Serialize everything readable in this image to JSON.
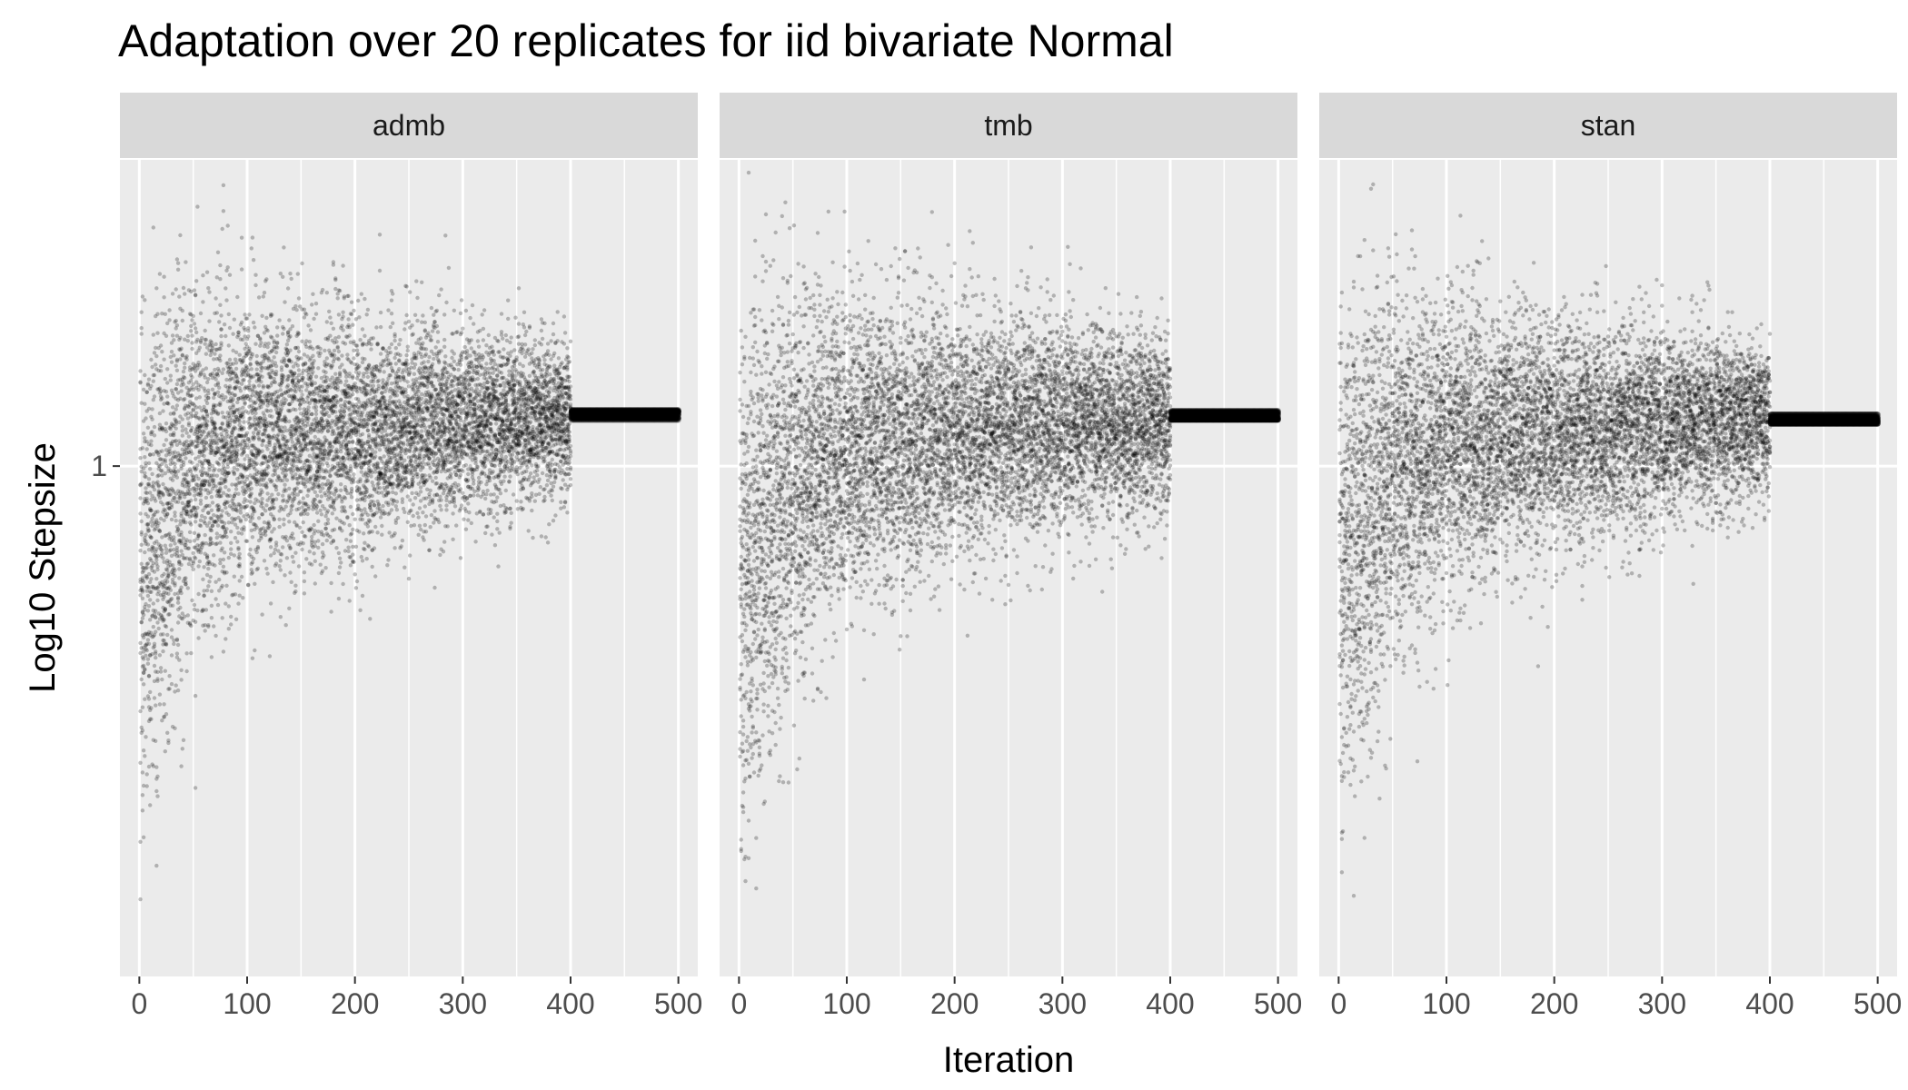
{
  "chart_data": {
    "type": "scatter",
    "title": "Adaptation over 20 replicates for iid bivariate Normal",
    "xlabel": "Iteration",
    "ylabel": "Log10 Stepsize",
    "xlim": [
      -18,
      518
    ],
    "x_ticks": [
      0,
      100,
      200,
      300,
      400,
      500
    ],
    "y_scale": "log10",
    "ylim_log10": [
      -0.6,
      0.36
    ],
    "y_ticks": [
      1
    ],
    "y_tick_labels": [
      "1"
    ],
    "grid": true,
    "legend": "none",
    "replicates": 20,
    "adaptation_iterations": 400,
    "total_iterations": 500,
    "point_color": "#000000",
    "point_opacity": 0.25,
    "panels": [
      {
        "name": "admb",
        "final_stepsize_log10": 0.06,
        "pattern": [
          {
            "iter": 0,
            "center_log10": -0.12,
            "spread_log10": 0.26
          },
          {
            "iter": 25,
            "center_log10": -0.05,
            "spread_log10": 0.22
          },
          {
            "iter": 50,
            "center_log10": 0.0,
            "spread_log10": 0.18
          },
          {
            "iter": 100,
            "center_log10": 0.03,
            "spread_log10": 0.15
          },
          {
            "iter": 200,
            "center_log10": 0.04,
            "spread_log10": 0.12
          },
          {
            "iter": 300,
            "center_log10": 0.05,
            "spread_log10": 0.1
          },
          {
            "iter": 400,
            "center_log10": 0.055,
            "spread_log10": 0.08
          }
        ]
      },
      {
        "name": "tmb",
        "final_stepsize_log10": 0.06,
        "pattern": [
          {
            "iter": 0,
            "center_log10": -0.15,
            "spread_log10": 0.28
          },
          {
            "iter": 25,
            "center_log10": -0.07,
            "spread_log10": 0.24
          },
          {
            "iter": 50,
            "center_log10": -0.02,
            "spread_log10": 0.2
          },
          {
            "iter": 100,
            "center_log10": 0.02,
            "spread_log10": 0.16
          },
          {
            "iter": 200,
            "center_log10": 0.04,
            "spread_log10": 0.13
          },
          {
            "iter": 300,
            "center_log10": 0.05,
            "spread_log10": 0.11
          },
          {
            "iter": 400,
            "center_log10": 0.055,
            "spread_log10": 0.09
          }
        ]
      },
      {
        "name": "stan",
        "final_stepsize_log10": 0.055,
        "pattern": [
          {
            "iter": 0,
            "center_log10": -0.14,
            "spread_log10": 0.27
          },
          {
            "iter": 25,
            "center_log10": -0.06,
            "spread_log10": 0.23
          },
          {
            "iter": 50,
            "center_log10": -0.01,
            "spread_log10": 0.19
          },
          {
            "iter": 100,
            "center_log10": 0.02,
            "spread_log10": 0.15
          },
          {
            "iter": 200,
            "center_log10": 0.04,
            "spread_log10": 0.12
          },
          {
            "iter": 300,
            "center_log10": 0.05,
            "spread_log10": 0.1
          },
          {
            "iter": 400,
            "center_log10": 0.055,
            "spread_log10": 0.08
          }
        ]
      }
    ]
  }
}
